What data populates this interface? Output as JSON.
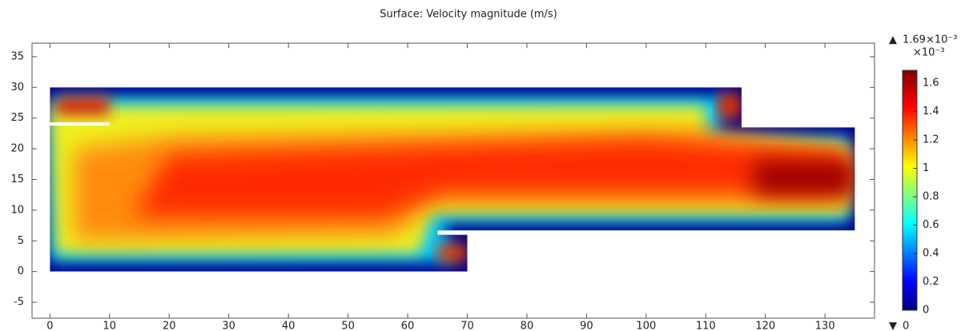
{
  "chart_data": {
    "type": "surface",
    "title": "Surface: Velocity magnitude (m/s)",
    "xlim": [
      -3,
      138.3
    ],
    "ylim": [
      -7.6,
      37.2
    ],
    "xticks": [
      0,
      10,
      20,
      30,
      40,
      50,
      60,
      70,
      80,
      90,
      100,
      110,
      120,
      130
    ],
    "yticks": [
      -5,
      0,
      5,
      10,
      15,
      20,
      25,
      30,
      35
    ],
    "outline": {
      "x": [
        0,
        70,
        70,
        65,
        65,
        135,
        135,
        116,
        116,
        0
      ],
      "y": [
        0,
        0,
        6,
        6,
        6.7,
        6.7,
        23.5,
        23.5,
        30,
        30
      ]
    },
    "colorbar": {
      "clim": [
        0,
        1.69
      ],
      "multiplier": "×10⁻³",
      "ticks": [
        0,
        0.2,
        0.4,
        0.6,
        0.8,
        1,
        1.2,
        1.4,
        1.6
      ],
      "max": {
        "value": 1.69,
        "label": "1.69×10⁻³"
      },
      "min": 0
    }
  }
}
